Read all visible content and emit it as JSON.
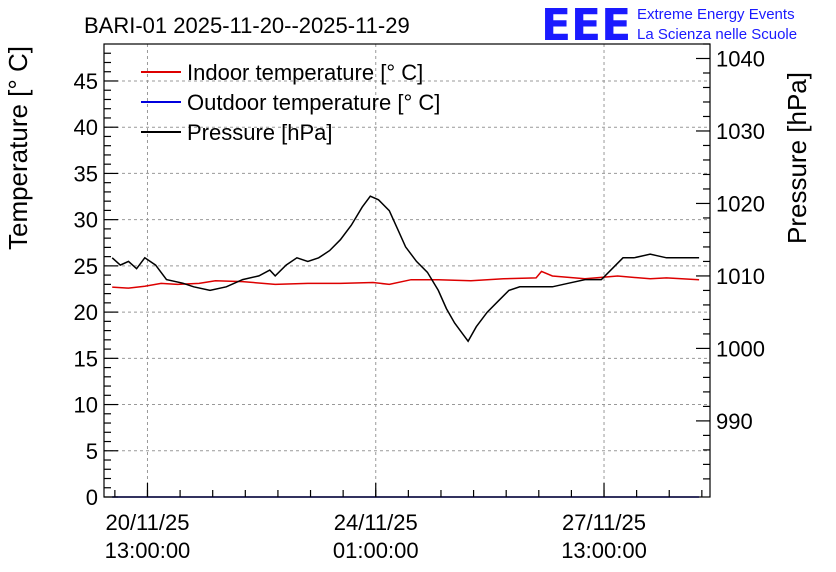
{
  "header": {
    "title": "BARI-01 2025-11-20--2025-11-29",
    "logo_text": "EEE",
    "logo_line1": "Extreme Energy Events",
    "logo_line2": "La Scienza nelle Scuole"
  },
  "colors": {
    "indoor": "#dd0000",
    "outdoor": "#0000dd",
    "pressure": "#000000",
    "logo": "#1a1aff"
  },
  "chart_data": {
    "type": "line",
    "title": "BARI-01 2025-11-20--2025-11-29",
    "ylabel": "Temperature [° C]",
    "y2label": "Pressure [hPa]",
    "ylim": [
      0,
      49
    ],
    "y2lim": [
      979.5,
      1042
    ],
    "grid": true,
    "legend_position": "top-left",
    "xlim": [
      "2025-11-19 21:00",
      "2025-11-29 04:00"
    ],
    "x_ticks": [
      {
        "t": "2025-11-20 13:00",
        "line1": "20/11/25",
        "line2": "13:00:00"
      },
      {
        "t": "2025-11-24 01:00",
        "line1": "24/11/25",
        "line2": "01:00:00"
      },
      {
        "t": "2025-11-27 13:00",
        "line1": "27/11/25",
        "line2": "13:00:00"
      }
    ],
    "y_ticks": [
      0,
      5,
      10,
      15,
      20,
      25,
      30,
      35,
      40,
      45
    ],
    "y2_ticks": [
      990,
      1000,
      1010,
      1020,
      1030,
      1040
    ],
    "series": [
      {
        "name": "Indoor temperature [° C]",
        "axis": "left",
        "color": "#dd0000",
        "points": [
          [
            "2025-11-20 00:00",
            22.7
          ],
          [
            "2025-11-20 06:00",
            22.6
          ],
          [
            "2025-11-20 12:00",
            22.8
          ],
          [
            "2025-11-20 18:00",
            23.1
          ],
          [
            "2025-11-21 00:00",
            23.0
          ],
          [
            "2025-11-21 08:00",
            23.1
          ],
          [
            "2025-11-21 14:00",
            23.4
          ],
          [
            "2025-11-22 00:00",
            23.3
          ],
          [
            "2025-11-22 12:00",
            23.0
          ],
          [
            "2025-11-23 00:00",
            23.1
          ],
          [
            "2025-11-23 12:00",
            23.1
          ],
          [
            "2025-11-24 00:00",
            23.2
          ],
          [
            "2025-11-24 06:00",
            23.0
          ],
          [
            "2025-11-24 14:00",
            23.5
          ],
          [
            "2025-11-25 00:00",
            23.5
          ],
          [
            "2025-11-25 12:00",
            23.4
          ],
          [
            "2025-11-26 00:00",
            23.6
          ],
          [
            "2025-11-26 12:00",
            23.7
          ],
          [
            "2025-11-26 14:00",
            24.4
          ],
          [
            "2025-11-26 18:00",
            23.9
          ],
          [
            "2025-11-27 06:00",
            23.6
          ],
          [
            "2025-11-27 18:00",
            23.9
          ],
          [
            "2025-11-28 06:00",
            23.6
          ],
          [
            "2025-11-28 12:00",
            23.7
          ],
          [
            "2025-11-29 00:00",
            23.5
          ]
        ]
      },
      {
        "name": "Outdoor temperature [° C]",
        "axis": "left",
        "color": "#0000dd",
        "points": [
          [
            "2025-11-20 00:00",
            0.0
          ],
          [
            "2025-11-29 00:00",
            0.0
          ]
        ]
      },
      {
        "name": "Pressure [hPa]",
        "axis": "right",
        "color": "#000000",
        "points": [
          [
            "2025-11-20 00:00",
            1012.5
          ],
          [
            "2025-11-20 03:00",
            1011.5
          ],
          [
            "2025-11-20 06:00",
            1012.0
          ],
          [
            "2025-11-20 09:00",
            1011.0
          ],
          [
            "2025-11-20 12:00",
            1012.5
          ],
          [
            "2025-11-20 16:00",
            1011.5
          ],
          [
            "2025-11-20 20:00",
            1009.5
          ],
          [
            "2025-11-21 02:00",
            1009.0
          ],
          [
            "2025-11-21 06:00",
            1008.5
          ],
          [
            "2025-11-21 12:00",
            1008.0
          ],
          [
            "2025-11-21 18:00",
            1008.5
          ],
          [
            "2025-11-22 00:00",
            1009.5
          ],
          [
            "2025-11-22 06:00",
            1010.0
          ],
          [
            "2025-11-22 10:00",
            1010.8
          ],
          [
            "2025-11-22 12:00",
            1010.0
          ],
          [
            "2025-11-22 16:00",
            1011.5
          ],
          [
            "2025-11-22 20:00",
            1012.5
          ],
          [
            "2025-11-23 00:00",
            1012.0
          ],
          [
            "2025-11-23 04:00",
            1012.5
          ],
          [
            "2025-11-23 08:00",
            1013.5
          ],
          [
            "2025-11-23 12:00",
            1015.0
          ],
          [
            "2025-11-23 16:00",
            1017.0
          ],
          [
            "2025-11-23 20:00",
            1019.5
          ],
          [
            "2025-11-23 23:00",
            1021.0
          ],
          [
            "2025-11-24 02:00",
            1020.5
          ],
          [
            "2025-11-24 06:00",
            1019.0
          ],
          [
            "2025-11-24 09:00",
            1016.5
          ],
          [
            "2025-11-24 12:00",
            1014.0
          ],
          [
            "2025-11-24 16:00",
            1012.0
          ],
          [
            "2025-11-24 20:00",
            1010.5
          ],
          [
            "2025-11-25 00:00",
            1008.0
          ],
          [
            "2025-11-25 03:00",
            1005.5
          ],
          [
            "2025-11-25 06:00",
            1003.5
          ],
          [
            "2025-11-25 09:00",
            1002.0
          ],
          [
            "2025-11-25 11:00",
            1001.0
          ],
          [
            "2025-11-25 14:00",
            1003.0
          ],
          [
            "2025-11-25 18:00",
            1005.0
          ],
          [
            "2025-11-25 22:00",
            1006.5
          ],
          [
            "2025-11-26 02:00",
            1008.0
          ],
          [
            "2025-11-26 06:00",
            1008.5
          ],
          [
            "2025-11-26 12:00",
            1008.5
          ],
          [
            "2025-11-26 18:00",
            1008.5
          ],
          [
            "2025-11-27 00:00",
            1009.0
          ],
          [
            "2025-11-27 06:00",
            1009.5
          ],
          [
            "2025-11-27 12:00",
            1009.5
          ],
          [
            "2025-11-27 16:00",
            1011.0
          ],
          [
            "2025-11-27 20:00",
            1012.5
          ],
          [
            "2025-11-28 00:00",
            1012.5
          ],
          [
            "2025-11-28 06:00",
            1013.0
          ],
          [
            "2025-11-28 12:00",
            1012.5
          ],
          [
            "2025-11-28 18:00",
            1012.5
          ],
          [
            "2025-11-29 00:00",
            1012.5
          ]
        ]
      }
    ]
  }
}
